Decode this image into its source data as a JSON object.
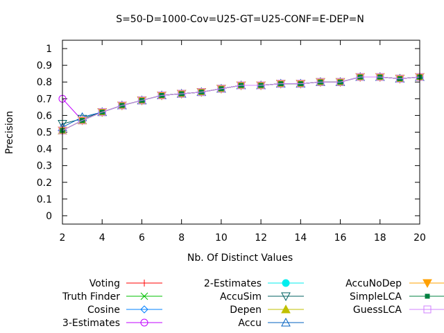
{
  "chart_data": {
    "type": "line",
    "title": "S=50-D=1000-Cov=U25-GT=U25-CONF=E-DEP=N",
    "xlabel": "Nb. Of Distinct Values",
    "ylabel": "Precision",
    "xlim": [
      2,
      20
    ],
    "ylim": [
      -0.05,
      1.05
    ],
    "xticks": [
      "2",
      "4",
      "6",
      "8",
      "10",
      "12",
      "14",
      "16",
      "18",
      "20"
    ],
    "yticks": [
      "0",
      "0.1",
      "0.2",
      "0.3",
      "0.4",
      "0.5",
      "0.6",
      "0.7",
      "0.8",
      "0.9",
      "1"
    ],
    "grid": false,
    "legend_position": "bottom",
    "x": [
      2,
      3,
      4,
      5,
      6,
      7,
      8,
      9,
      10,
      11,
      12,
      13,
      14,
      15,
      16,
      17,
      18,
      19,
      20
    ],
    "series": [
      {
        "name": "Voting",
        "color": "#ff0000",
        "marker": "plus",
        "values": [
          0.51,
          0.57,
          0.62,
          0.66,
          0.69,
          0.72,
          0.73,
          0.74,
          0.76,
          0.78,
          0.78,
          0.79,
          0.79,
          0.8,
          0.8,
          0.83,
          0.83,
          0.82,
          0.83
        ]
      },
      {
        "name": "Truth Finder",
        "color": "#00c000",
        "marker": "cross",
        "values": [
          0.51,
          0.57,
          0.62,
          0.66,
          0.69,
          0.72,
          0.73,
          0.74,
          0.76,
          0.78,
          0.78,
          0.79,
          0.79,
          0.8,
          0.8,
          0.83,
          0.83,
          0.82,
          0.83
        ]
      },
      {
        "name": "Cosine",
        "color": "#0080ff",
        "marker": "diamond",
        "values": [
          0.51,
          0.57,
          0.62,
          0.66,
          0.69,
          0.72,
          0.73,
          0.74,
          0.76,
          0.78,
          0.78,
          0.79,
          0.79,
          0.8,
          0.8,
          0.83,
          0.83,
          0.82,
          0.83
        ]
      },
      {
        "name": "3-Estimates",
        "color": "#c000ff",
        "marker": "circle",
        "values": [
          0.7,
          0.57,
          0.62,
          0.66,
          0.69,
          0.72,
          0.73,
          0.74,
          0.76,
          0.78,
          0.78,
          0.79,
          0.79,
          0.8,
          0.8,
          0.83,
          0.83,
          0.82,
          0.83
        ]
      },
      {
        "name": "2-Estimates",
        "color": "#00eeee",
        "marker": "filled-circle",
        "values": [
          0.51,
          0.57,
          0.62,
          0.66,
          0.69,
          0.72,
          0.73,
          0.74,
          0.76,
          0.78,
          0.78,
          0.79,
          0.79,
          0.8,
          0.8,
          0.83,
          0.83,
          0.82,
          0.83
        ]
      },
      {
        "name": "AccuSim",
        "color": "#006060",
        "marker": "triangle-down",
        "values": [
          0.55,
          0.58,
          0.62,
          0.66,
          0.69,
          0.72,
          0.73,
          0.74,
          0.76,
          0.78,
          0.78,
          0.79,
          0.79,
          0.8,
          0.8,
          0.83,
          0.83,
          0.82,
          0.83
        ]
      },
      {
        "name": "Depen",
        "color": "#c0c000",
        "marker": "filled-triangle",
        "values": [
          0.51,
          0.57,
          0.62,
          0.66,
          0.69,
          0.72,
          0.73,
          0.74,
          0.76,
          0.78,
          0.78,
          0.79,
          0.79,
          0.8,
          0.8,
          0.83,
          0.83,
          0.82,
          0.83
        ]
      },
      {
        "name": "Accu",
        "color": "#0060c0",
        "marker": "triangle",
        "values": [
          0.53,
          0.59,
          0.62,
          0.66,
          0.69,
          0.72,
          0.73,
          0.74,
          0.76,
          0.78,
          0.78,
          0.79,
          0.79,
          0.8,
          0.8,
          0.83,
          0.83,
          0.82,
          0.83
        ]
      },
      {
        "name": "AccuNoDep",
        "color": "#ffa000",
        "marker": "filled-triangle-down",
        "values": [
          0.51,
          0.57,
          0.62,
          0.66,
          0.69,
          0.72,
          0.73,
          0.74,
          0.76,
          0.78,
          0.78,
          0.79,
          0.79,
          0.8,
          0.8,
          0.83,
          0.83,
          0.82,
          0.83
        ]
      },
      {
        "name": "SimpleLCA",
        "color": "#008040",
        "marker": "filled-square",
        "values": [
          0.51,
          0.57,
          0.62,
          0.66,
          0.69,
          0.72,
          0.73,
          0.74,
          0.76,
          0.78,
          0.78,
          0.79,
          0.79,
          0.8,
          0.8,
          0.83,
          0.83,
          0.82,
          0.83
        ]
      },
      {
        "name": "GuessLCA",
        "color": "#d080ff",
        "marker": "square",
        "values": [
          0.51,
          0.57,
          0.62,
          0.66,
          0.69,
          0.72,
          0.73,
          0.74,
          0.76,
          0.78,
          0.78,
          0.79,
          0.79,
          0.8,
          0.8,
          0.83,
          0.83,
          0.82,
          0.83
        ]
      }
    ]
  }
}
